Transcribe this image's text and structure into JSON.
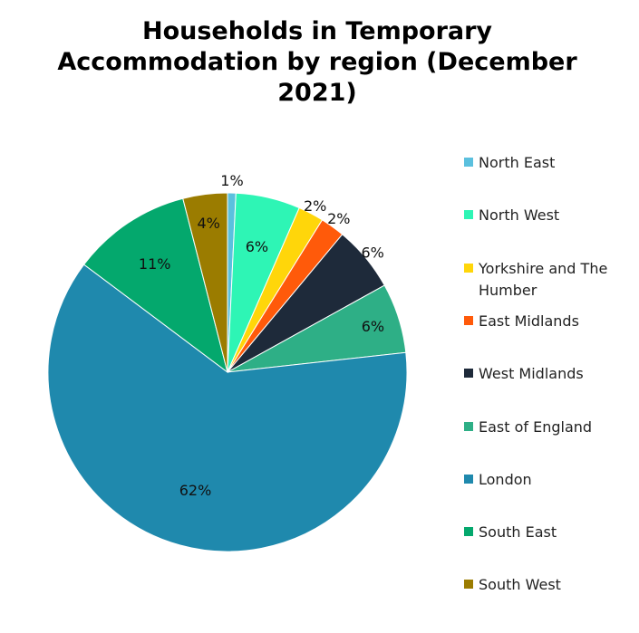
{
  "title_lines": [
    "Households in Temporary",
    "Accommodation by region (December",
    "2021)"
  ],
  "chart_data": {
    "type": "pie",
    "title": "Households in Temporary Accommodation by region (December 2021)",
    "categories": [
      "North East",
      "North West",
      "Yorkshire and The Humber",
      "East Midlands",
      "West Midlands",
      "East of England",
      "London",
      "South East",
      "South West"
    ],
    "values": [
      0.75,
      5.8,
      2.3,
      2.2,
      5.9,
      6.3,
      62,
      10.75,
      4.0
    ],
    "labels": [
      "1%",
      "6%",
      "2%",
      "2%",
      "6%",
      "6%",
      "62%",
      "11%",
      "4%"
    ],
    "colors": [
      "#5bc0de",
      "#2ef5b5",
      "#ffd60a",
      "#ff5a0a",
      "#1e2a3a",
      "#2eaf86",
      "#1f89ad",
      "#04a86d",
      "#9b7c00"
    ],
    "legend_position": "right"
  }
}
